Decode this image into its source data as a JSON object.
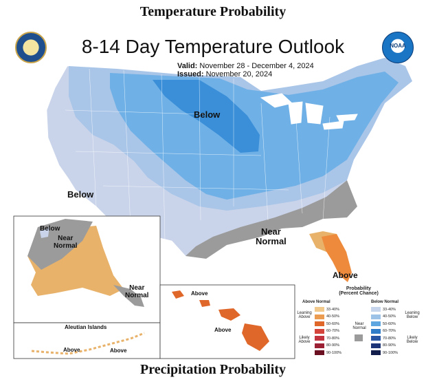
{
  "header_top": "Temperature Probability",
  "header_bottom": "Precipitation Probability",
  "title": "8-14 Day Temperature Outlook",
  "valid_label": "Valid:",
  "valid_text": "November 28 - December 4, 2024",
  "issued_label": "Issued:",
  "issued_text": "November 20, 2024",
  "agency_logos": {
    "left": "dept-of-commerce-seal-icon",
    "right": "noaa-logo-icon"
  },
  "map_labels": {
    "conus_below_north": "Below",
    "conus_below_west": "Below",
    "conus_near_normal_1": "Near",
    "conus_near_normal_2": "Normal",
    "conus_above": "Above",
    "alaska_below": "Below",
    "alaska_near_normal_1": "Near",
    "alaska_near_normal_2": "Normal",
    "alaska_se_near_1": "Near",
    "alaska_se_near_2": "Normal",
    "aleutian_title": "Aleutian Islands",
    "aleutian_above_1": "Above",
    "aleutian_above_2": "Above",
    "hawaii_above_1": "Above",
    "hawaii_above_2": "Above"
  },
  "colors": {
    "below_leaning": "#c9d4ea",
    "below_40": "#a9c5e8",
    "below_50": "#5fa8e2",
    "below_60": "#3a8fd8",
    "near_normal": "#9b9b9b",
    "above_leaning": "#e8b26a",
    "above_40": "#ee8a3c",
    "ocean": "#ffffff"
  },
  "legend": {
    "title_1": "Probability",
    "title_2": "(Percent Chance)",
    "above_header": "Above Normal",
    "below_header": "Below Normal",
    "near_label_1": "Near",
    "near_label_2": "Normal",
    "leaning_above_1": "Leaning",
    "leaning_above_2": "Above",
    "likely_above_1": "Likely",
    "likely_above_2": "Above",
    "leaning_below_1": "Leaning",
    "leaning_below_2": "Below",
    "likely_below_1": "Likely",
    "likely_below_2": "Below",
    "above_bins": [
      {
        "label": "33-40%",
        "color": "#f2c98c"
      },
      {
        "label": "40-50%",
        "color": "#ec9c50"
      },
      {
        "label": "50-60%",
        "color": "#e0672a"
      },
      {
        "label": "60-70%",
        "color": "#d4443a"
      },
      {
        "label": "70-80%",
        "color": "#c0333f"
      },
      {
        "label": "80-90%",
        "color": "#9c2033"
      },
      {
        "label": "90-100%",
        "color": "#6b1020"
      }
    ],
    "below_bins": [
      {
        "label": "33-40%",
        "color": "#c6d5ec"
      },
      {
        "label": "40-50%",
        "color": "#9cc2e8"
      },
      {
        "label": "50-60%",
        "color": "#5ea6e0"
      },
      {
        "label": "60-70%",
        "color": "#2f7cc9"
      },
      {
        "label": "70-80%",
        "color": "#2855a3"
      },
      {
        "label": "80-90%",
        "color": "#1d3477"
      },
      {
        "label": "90-100%",
        "color": "#121d4c"
      }
    ],
    "near_color": "#9b9b9b"
  }
}
